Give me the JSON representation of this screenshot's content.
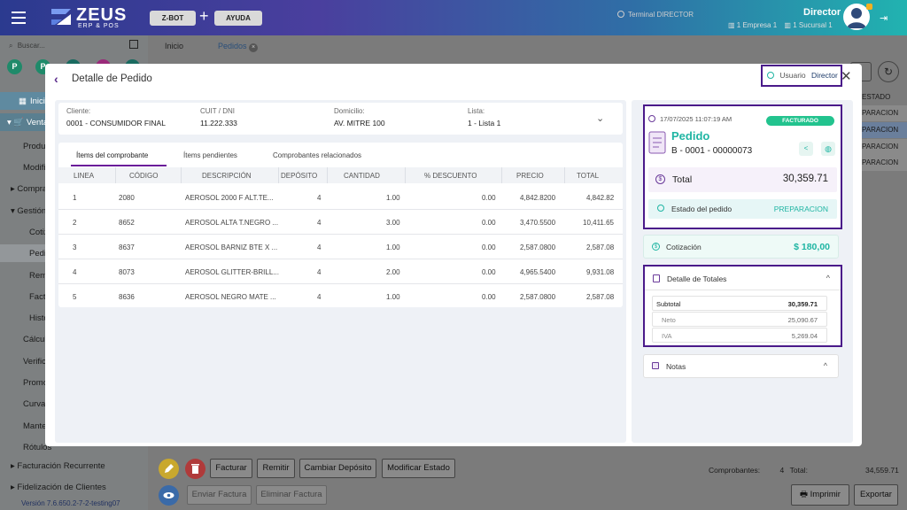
{
  "header": {
    "logo_text": "ZEUS",
    "logo_sub": "ERP & POS",
    "zbot_label": "Z-BOT",
    "ayuda_label": "AYUDA",
    "terminal": "Terminal DIRECTOR",
    "user_name": "Director",
    "empresa": "1 Empresa 1",
    "sucursal": "1 Sucursal 1"
  },
  "sidebar": {
    "search_placeholder": "Buscar...",
    "shortcut_letters": [
      "P",
      "P"
    ],
    "items": [
      {
        "label": "Inicio"
      },
      {
        "label": "Ventas"
      },
      {
        "label": "Productos"
      },
      {
        "label": "Modificar"
      },
      {
        "label": "Compras"
      },
      {
        "label": "Gestión"
      },
      {
        "label": "Cotizaciones"
      },
      {
        "label": "Pedidos"
      },
      {
        "label": "Remitos"
      },
      {
        "label": "Facturas"
      },
      {
        "label": "Historial"
      },
      {
        "label": "Cálculo"
      },
      {
        "label": "Verificar"
      },
      {
        "label": "Promociones"
      },
      {
        "label": "Curvas"
      },
      {
        "label": "Mantenimiento"
      },
      {
        "label": "Rótulos"
      },
      {
        "label": "Facturación Recurrente"
      },
      {
        "label": "Fidelización de Clientes"
      }
    ],
    "version": "Versión 7.6.650.2-7-2-testing07"
  },
  "tabs": [
    {
      "label": "Inicio"
    },
    {
      "label": "Pedidos"
    }
  ],
  "background_statuses": [
    "ESTADO",
    "PARACION",
    "PARACION",
    "PARACION",
    "PARACION"
  ],
  "bottom": {
    "facturar": "Facturar",
    "remitir": "Remitir",
    "cambiar_deposito": "Cambiar Depósito",
    "modificar_estado": "Modificar Estado",
    "enviar_factura": "Enviar Factura",
    "eliminar_factura": "Eliminar Factura",
    "comprobantes_label": "Comprobantes:",
    "comprobantes_count": "4",
    "total_label": "Total:",
    "total_value": "34,559.71",
    "imprimir": "Imprimir",
    "exportar": "Exportar"
  },
  "modal": {
    "title": "Detalle de Pedido",
    "usuario_label": "Usuario",
    "usuario_value": "Director",
    "cliente_label": "Cliente:",
    "cliente_value": "0001 - CONSUMIDOR FINAL",
    "cuit_label": "CUIT / DNI",
    "cuit_value": "11.222.333",
    "domicilio_label": "Domicilio:",
    "domicilio_value": "AV. MITRE 100",
    "lista_label": "Lista:",
    "lista_value": "1 - Lista 1",
    "tabs": [
      "Ítems del comprobante",
      "Ítems pendientes",
      "Comprobantes relacionados"
    ],
    "columns": [
      "LINEA",
      "CÓDIGO",
      "DESCRIPCIÓN",
      "DEPÓSITO",
      "CANTIDAD",
      "% DESCUENTO",
      "PRECIO",
      "TOTAL"
    ],
    "rows": [
      {
        "linea": "1",
        "codigo": "2080",
        "descripcion": "AEROSOL 2000 F ALT.TE...",
        "deposito": "4",
        "cantidad": "1.00",
        "descuento": "0.00",
        "precio": "4,842.8200",
        "total": "4,842.82"
      },
      {
        "linea": "2",
        "codigo": "8652",
        "descripcion": "AEROSOL ALTA T.NEGRO ...",
        "deposito": "4",
        "cantidad": "3.00",
        "descuento": "0.00",
        "precio": "3,470.5500",
        "total": "10,411.65"
      },
      {
        "linea": "3",
        "codigo": "8637",
        "descripcion": "AEROSOL BARNIZ BTE X ...",
        "deposito": "4",
        "cantidad": "1.00",
        "descuento": "0.00",
        "precio": "2,587.0800",
        "total": "2,587.08"
      },
      {
        "linea": "4",
        "codigo": "8073",
        "descripcion": "AEROSOL GLITTER-BRILL...",
        "deposito": "4",
        "cantidad": "2.00",
        "descuento": "0.00",
        "precio": "4,965.5400",
        "total": "9,931.08"
      },
      {
        "linea": "5",
        "codigo": "8636",
        "descripcion": "AEROSOL NEGRO MATE ...",
        "deposito": "4",
        "cantidad": "1.00",
        "descuento": "0.00",
        "precio": "2,587.0800",
        "total": "2,587.08"
      }
    ],
    "order": {
      "datetime": "17/07/2025 11:07:19 AM",
      "badge": "FACTURADO",
      "title": "Pedido",
      "number": "B - 0001 - 00000073",
      "total_label": "Total",
      "total_value": "30,359.71",
      "estado_label": "Estado del pedido",
      "estado_value": "PREPARACION"
    },
    "cotizacion_label": "Cotización",
    "cotizacion_value": "$ 180,00",
    "detalle_title": "Detalle de Totales",
    "subtotal_label": "Subtotal",
    "subtotal_value": "30,359.71",
    "neto_label": "Neto",
    "neto_value": "25,090.67",
    "iva_label": "IVA",
    "iva_value": "5,269.04",
    "notas_title": "Notas"
  },
  "colors": {
    "accent_purple": "#4a1a8a",
    "teal": "#1fb5a3",
    "badge_green": "#22c38e"
  }
}
